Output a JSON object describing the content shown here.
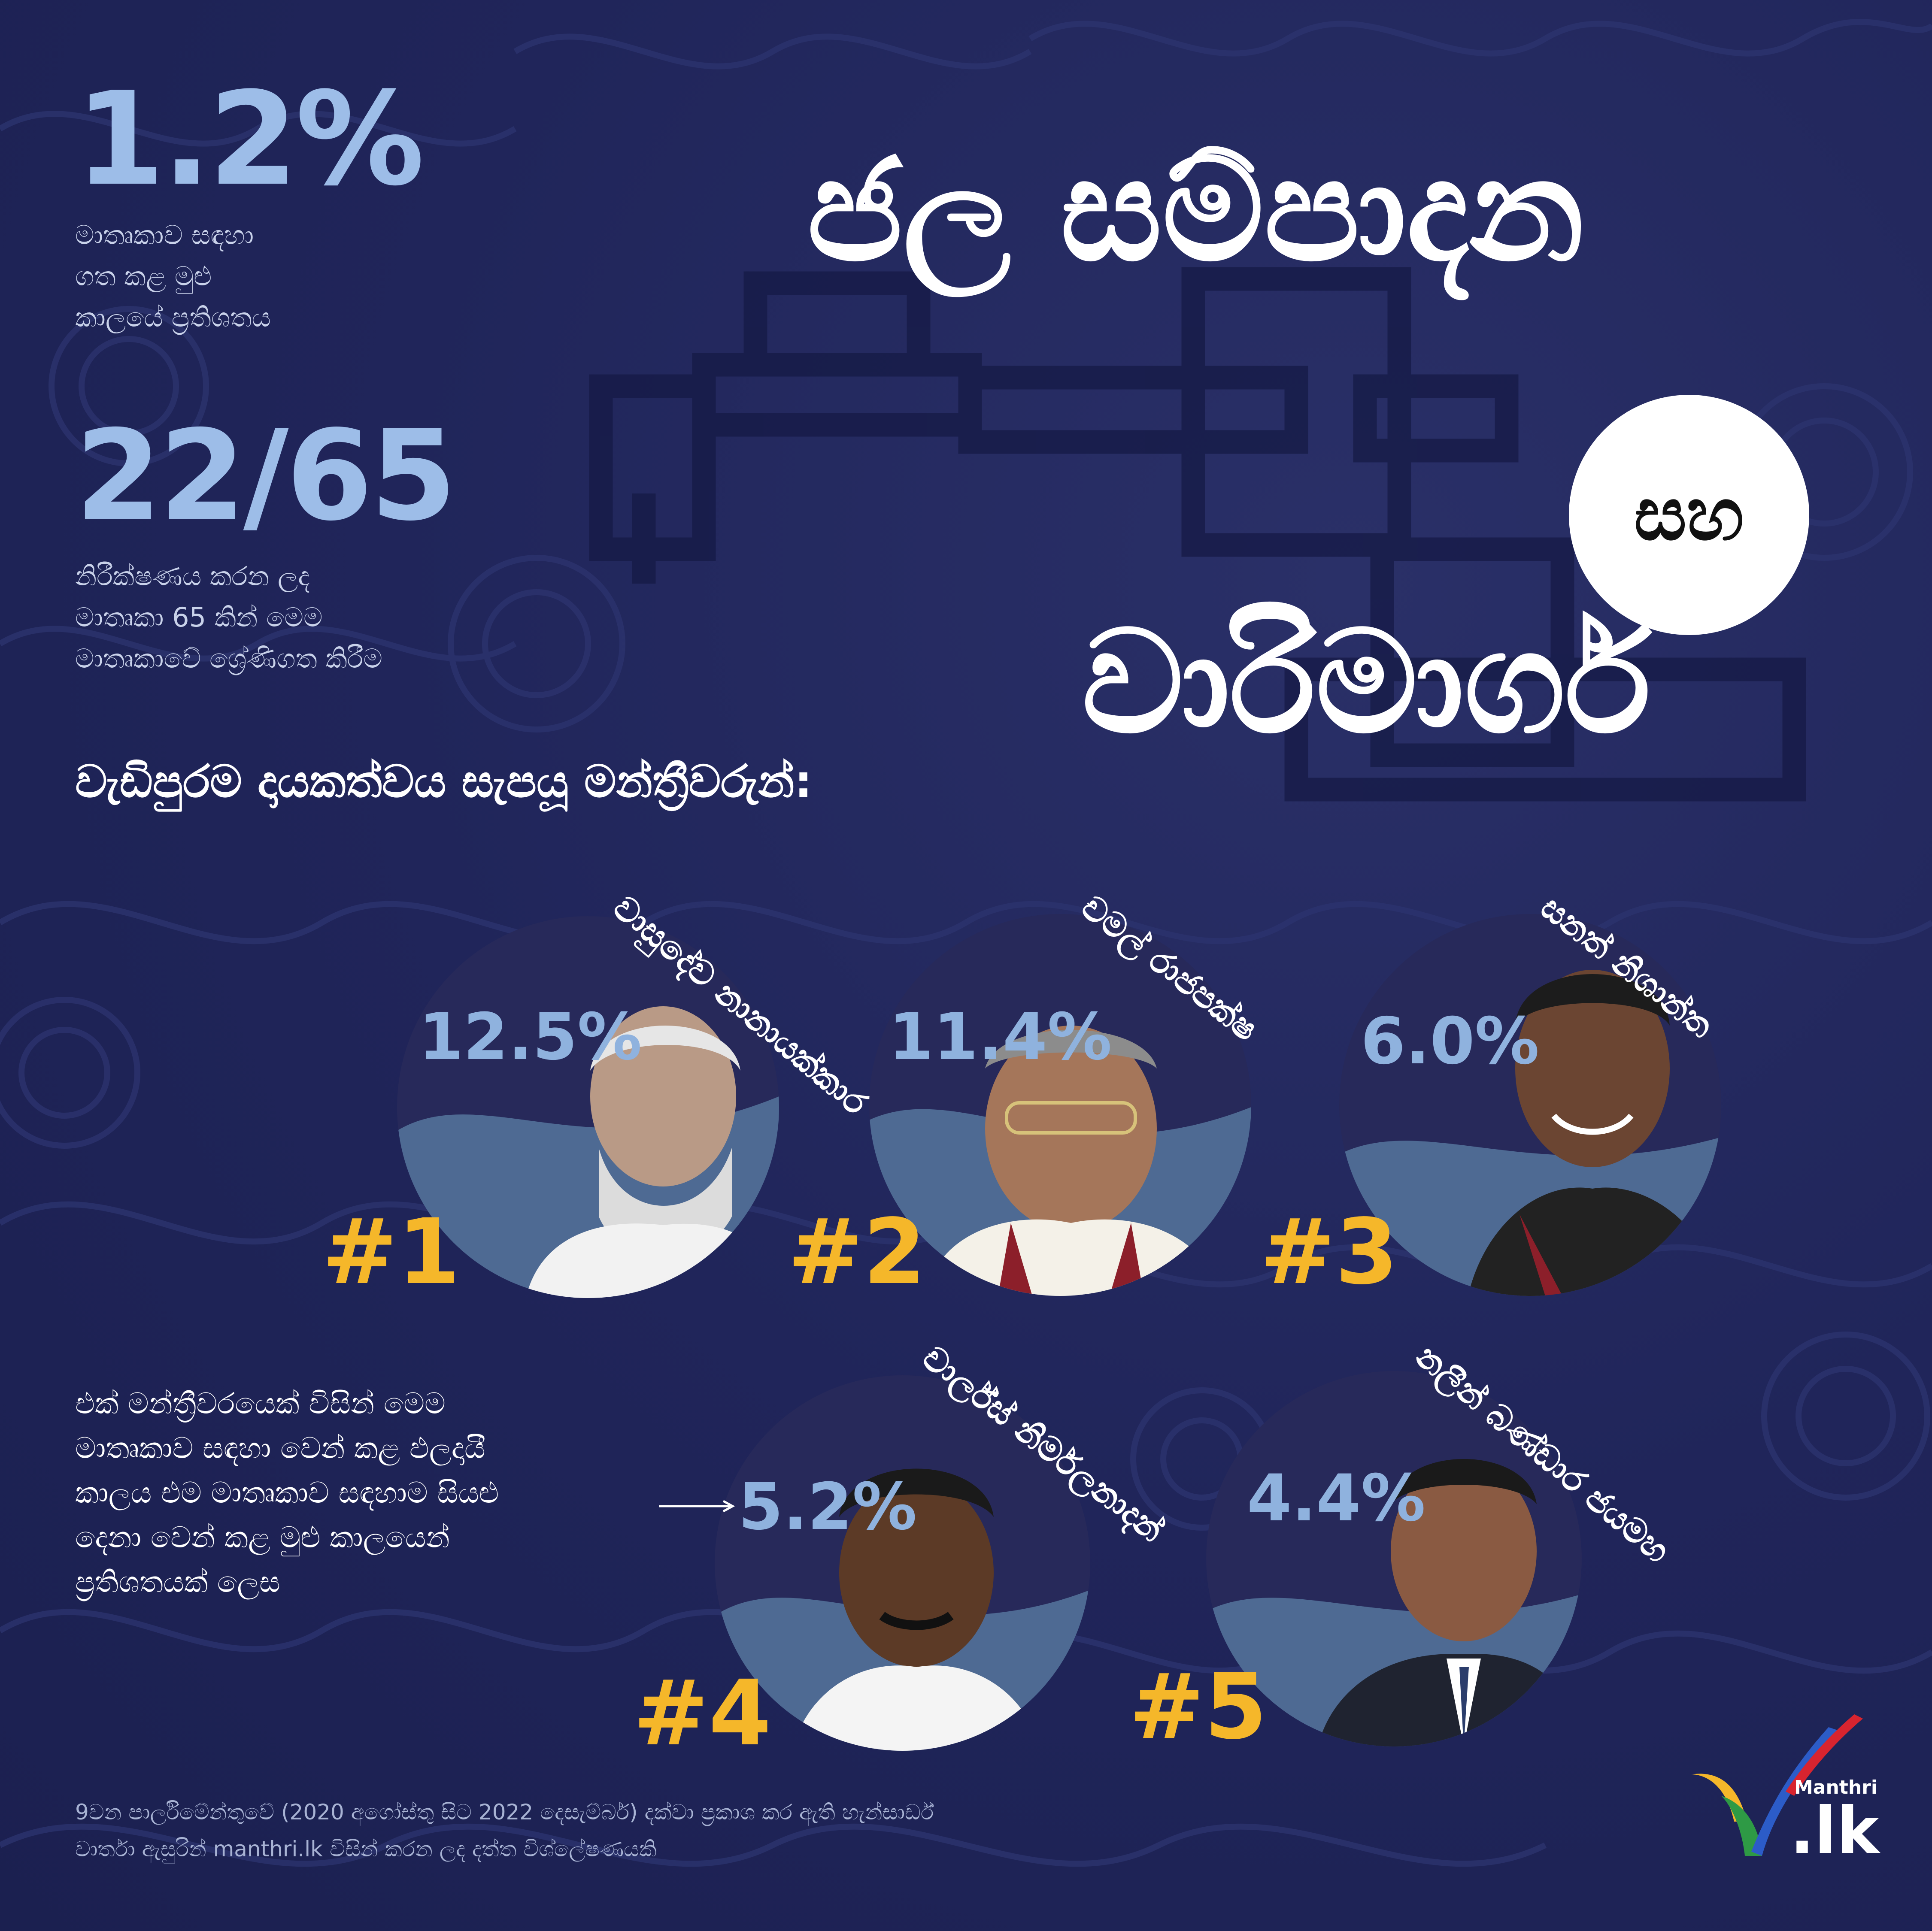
{
  "stats": [
    {
      "value": "1.2%",
      "description_lines": [
        "මාතෘකාව සඳහා",
        "ගත කළ මුළු",
        "කාලයේ ප්‍රතිශතය"
      ]
    },
    {
      "value": "22/65",
      "description_lines": [
        "නිරීක්ෂණය කරන ලද",
        "මාතෘකා 65 කින් මෙම",
        "මාතෘකාවේ ශ්‍රේණිගත කිරීම"
      ]
    }
  ],
  "title": {
    "line1": "ජල සම්පාදන",
    "connector": "සහ",
    "line2": "වාරිමාර්ග"
  },
  "subheading": "වැඩිපුරම දායකත්වය සැපයූ මන්ත්‍රීවරුන්:",
  "members": [
    {
      "rank": "#1",
      "name": "වාසුදේව නානායක්කාර",
      "percent": "12.5%",
      "percent_value": 12.5
    },
    {
      "rank": "#2",
      "name": "චමල් රාජපක්ෂ",
      "percent": "11.4%",
      "percent_value": 11.4
    },
    {
      "rank": "#3",
      "name": "සනත් නිශාන්ත",
      "percent": "6.0%",
      "percent_value": 6.0
    },
    {
      "rank": "#4",
      "name": "චාර්ල්ස් නිර්මලනාදන්",
      "percent": "5.2%",
      "percent_value": 5.2
    },
    {
      "rank": "#5",
      "name": "නලීන් බණ්ඩාර ජයමහ",
      "percent": "4.4%",
      "percent_value": 4.4
    }
  ],
  "note_lines": [
    "එක් මන්ත්‍රීවරයෙක් විසින් මෙම",
    "මාතෘකාව සඳහා වෙන් කළ ඵලදායී",
    "කාලය එම මාතෘකාව සඳහාම සියළු",
    "දෙනා වෙන් කළ මුළු කාලයෙන්",
    "ප්‍රතිශතයක් ලෙස"
  ],
  "footer_lines": [
    "9වන පාර්ලිමේන්තුවේ (2020 අගෝස්තු සිට 2022 දෙසැම්බර්) දක්වා ප්‍රකාශ කර ඇති හැන්සාර්ඩ්",
    "වාර්තා ඇසුරින් manthri.lk විසින් කරන ලද දත්ත විශ්ලේෂණයකි"
  ],
  "logo": {
    "small": "Manthri",
    "big": ".lk"
  },
  "colors": {
    "background": "#1f2456",
    "accent_blue": "#9dbde8",
    "rank_yellow": "#f5b72a",
    "wave": "#4e6a93"
  }
}
